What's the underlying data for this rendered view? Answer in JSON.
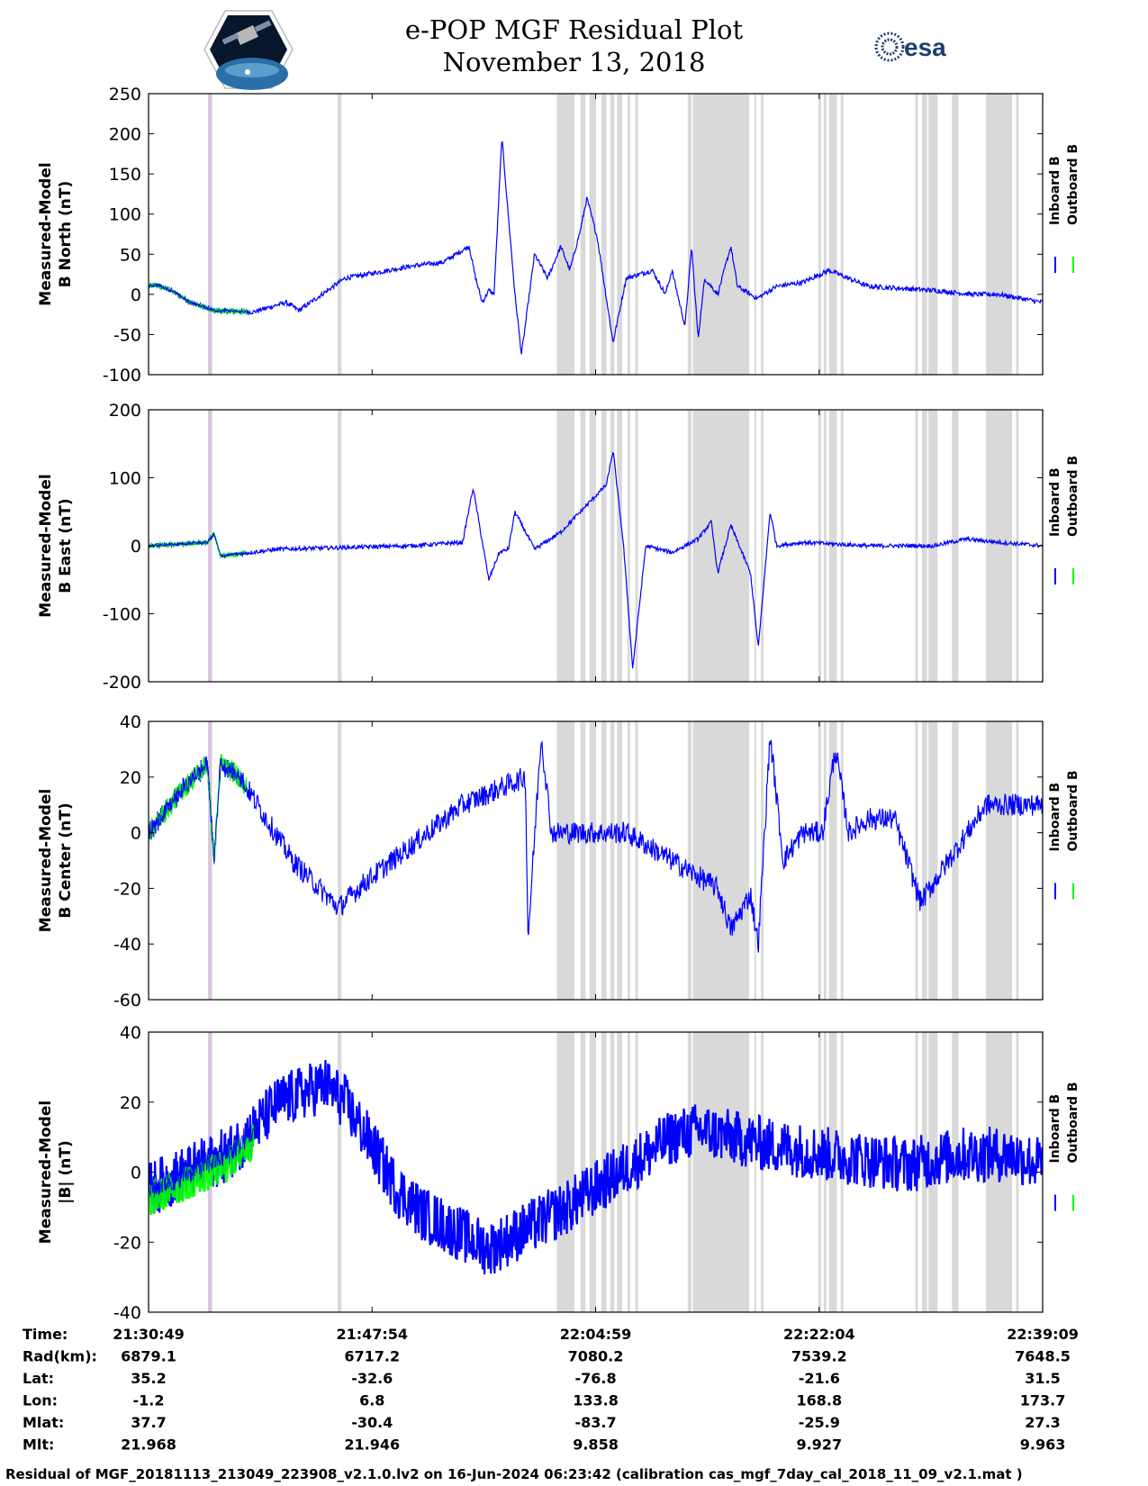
{
  "title": "e-POP MGF Residual Plot",
  "subtitle": "November 13, 2018",
  "logos": [
    "cassiope-mission-logo",
    "esa-logo"
  ],
  "esa_text": "esa",
  "colors": {
    "inboard": "#0000ff",
    "outboard": "#00ff00",
    "shade_gray": "#d9d9d9",
    "shade_purple": "#d9c4de"
  },
  "chart_data": [
    {
      "type": "line",
      "ylabel": [
        "Measured-Model",
        "B North (nT)"
      ],
      "ylim": [
        -100,
        250
      ],
      "yticks": [
        250,
        200,
        150,
        100,
        50,
        0,
        -50,
        -100
      ],
      "legend": [
        "Inboard B",
        "Outboard B"
      ],
      "grid": false,
      "series": [
        {
          "name": "Inboard B",
          "color": "#0000ff",
          "x": [
            0,
            0.6,
            1.7,
            3.2,
            5.0,
            8.0,
            10.5,
            11.5,
            15.0,
            20.0,
            22.5,
            24.5,
            25.0,
            25.5,
            26.0,
            26.4,
            27.0,
            28.0,
            28.5,
            29.5,
            30.5,
            31.5,
            32.2,
            33.0,
            33.5,
            34.3,
            35.5,
            36.5,
            38.5,
            39.5,
            40.0,
            41.0,
            41.5,
            42.0,
            42.5,
            43.5,
            44.5,
            45.0,
            46.5,
            48.0,
            50.0,
            52.0,
            55.0,
            60.0,
            63.0,
            65.0,
            68.33
          ],
          "y": [
            10,
            12,
            5,
            -10,
            -20,
            -22,
            -10,
            -20,
            20,
            35,
            40,
            60,
            20,
            -10,
            5,
            0,
            195,
            0,
            -75,
            50,
            20,
            60,
            30,
            80,
            120,
            70,
            -60,
            20,
            30,
            0,
            30,
            -40,
            60,
            -55,
            20,
            0,
            60,
            10,
            -5,
            10,
            15,
            30,
            10,
            5,
            0,
            0,
            -10
          ]
        }
      ]
    },
    {
      "type": "line",
      "ylabel": [
        "Measured-Model",
        "B East (nT)"
      ],
      "ylim": [
        -200,
        200
      ],
      "yticks": [
        200,
        100,
        0,
        -100,
        -200
      ],
      "legend": [
        "Inboard B",
        "Outboard B"
      ],
      "grid": false,
      "series": [
        {
          "name": "Inboard B",
          "color": "#0000ff",
          "x": [
            0,
            4.5,
            5.0,
            5.5,
            10.0,
            20.0,
            24.0,
            24.8,
            26.0,
            26.8,
            27.5,
            28.0,
            29.5,
            31.5,
            33.0,
            35.0,
            35.5,
            36.3,
            37.0,
            38.0,
            40.0,
            42.0,
            43.0,
            43.5,
            44.5,
            46.0,
            46.6,
            47.5,
            48.0,
            50.0,
            55.0,
            60.0,
            62.5,
            65.0,
            68.33
          ],
          "y": [
            0,
            5,
            18,
            -15,
            -5,
            0,
            5,
            85,
            -50,
            -10,
            -5,
            50,
            -5,
            20,
            50,
            90,
            140,
            0,
            -180,
            0,
            -10,
            10,
            35,
            -40,
            30,
            -40,
            -150,
            50,
            0,
            5,
            0,
            0,
            10,
            5,
            0
          ]
        }
      ]
    },
    {
      "type": "line",
      "ylabel": [
        "Measured-Model",
        "B Center (nT)"
      ],
      "ylim": [
        -60,
        40
      ],
      "yticks": [
        40,
        20,
        0,
        -20,
        -40,
        -60
      ],
      "legend": [
        "Inboard B",
        "Outboard B"
      ],
      "grid": false,
      "series": [
        {
          "name": "Inboard B",
          "color": "#0000ff",
          "x": [
            0,
            2.5,
            4.5,
            5.0,
            5.5,
            7.0,
            11.0,
            14.5,
            16.5,
            20.0,
            24.0,
            28.8,
            29.0,
            30.0,
            30.8,
            32.0,
            35.0,
            36.5,
            40.0,
            43.5,
            44.5,
            46.0,
            46.6,
            47.5,
            48.5,
            50.0,
            51.5,
            52.5,
            53.5,
            55.0,
            57.0,
            59.0,
            64.0,
            66.0,
            68.33
          ],
          "y": [
            0,
            15,
            25,
            -10,
            25,
            20,
            -10,
            -27,
            -18,
            -5,
            10,
            20,
            -38,
            35,
            0,
            0,
            0,
            0,
            -10,
            -20,
            -35,
            -22,
            -40,
            35,
            -10,
            0,
            0,
            30,
            0,
            5,
            5,
            -25,
            10,
            10,
            10
          ]
        }
      ]
    },
    {
      "type": "line",
      "ylabel": [
        "Measured-Model",
        "|B| (nT)"
      ],
      "ylim": [
        -40,
        40
      ],
      "yticks": [
        40,
        20,
        0,
        -20,
        -40
      ],
      "legend": [
        "Inboard B",
        "Outboard B"
      ],
      "grid": false,
      "series": [
        {
          "name": "Inboard B",
          "color": "#0000ff",
          "x": [
            0,
            3.0,
            6.0,
            8.0,
            10.0,
            13.5,
            15.0,
            17.0,
            19.0,
            21.0,
            24.0,
            26.0,
            28.0,
            32.0,
            36.0,
            40.0,
            42.0,
            47.0,
            52.0,
            58.0,
            62.0,
            66.0,
            68.33
          ],
          "y": [
            -5,
            0,
            5,
            12,
            20,
            25,
            20,
            8,
            -5,
            -12,
            -18,
            -22,
            -18,
            -10,
            0,
            10,
            12,
            8,
            5,
            2,
            5,
            5,
            2
          ]
        }
      ]
    }
  ],
  "x_axis": {
    "range_min": [
      0,
      68.33
    ],
    "tick_positions_min": [
      0,
      17.083,
      34.167,
      51.25,
      68.333
    ],
    "shaded_intervals_min": [
      [
        14.45,
        14.75
      ],
      [
        31.2,
        32.55
      ],
      [
        33.0,
        33.4
      ],
      [
        33.7,
        34.2
      ],
      [
        34.6,
        35.0
      ],
      [
        35.3,
        35.6
      ],
      [
        35.8,
        36.2
      ],
      [
        36.6,
        36.8
      ],
      [
        37.2,
        37.4
      ],
      [
        41.2,
        41.5
      ],
      [
        41.6,
        45.9
      ],
      [
        46.3,
        46.4
      ],
      [
        46.8,
        47.0
      ],
      [
        51.2,
        51.4
      ],
      [
        51.6,
        51.8
      ],
      [
        52.0,
        52.6
      ],
      [
        52.9,
        53.1
      ],
      [
        58.6,
        58.8
      ],
      [
        59.1,
        59.5
      ],
      [
        59.6,
        60.3
      ],
      [
        61.4,
        61.9
      ],
      [
        64.0,
        66.0
      ],
      [
        66.3,
        66.5
      ]
    ],
    "highlight_interval_min": [
      [
        4.55,
        4.85
      ]
    ]
  },
  "info_table": {
    "rows": [
      {
        "label": "Time:",
        "values": [
          "21:30:49",
          "21:47:54",
          "22:04:59",
          "22:22:04",
          "22:39:09"
        ]
      },
      {
        "label": "Rad(km):",
        "values": [
          "6879.1",
          "6717.2",
          "7080.2",
          "7539.2",
          "7648.5"
        ]
      },
      {
        "label": "Lat:",
        "values": [
          "35.2",
          "-32.6",
          "-76.8",
          "-21.6",
          "31.5"
        ]
      },
      {
        "label": "Lon:",
        "values": [
          "-1.2",
          "6.8",
          "133.8",
          "168.8",
          "173.7"
        ]
      },
      {
        "label": "Mlat:",
        "values": [
          "37.7",
          "-30.4",
          "-83.7",
          "-25.9",
          "27.3"
        ]
      },
      {
        "label": "Mlt:",
        "values": [
          "21.968",
          "21.946",
          "9.858",
          "9.927",
          "9.963"
        ]
      }
    ]
  },
  "footer": "Residual of MGF_20181113_213049_223908_v2.1.0.lv2 on 16-Jun-2024 06:23:42 (calibration cas_mgf_7day_cal_2018_11_09_v2.1.mat )"
}
